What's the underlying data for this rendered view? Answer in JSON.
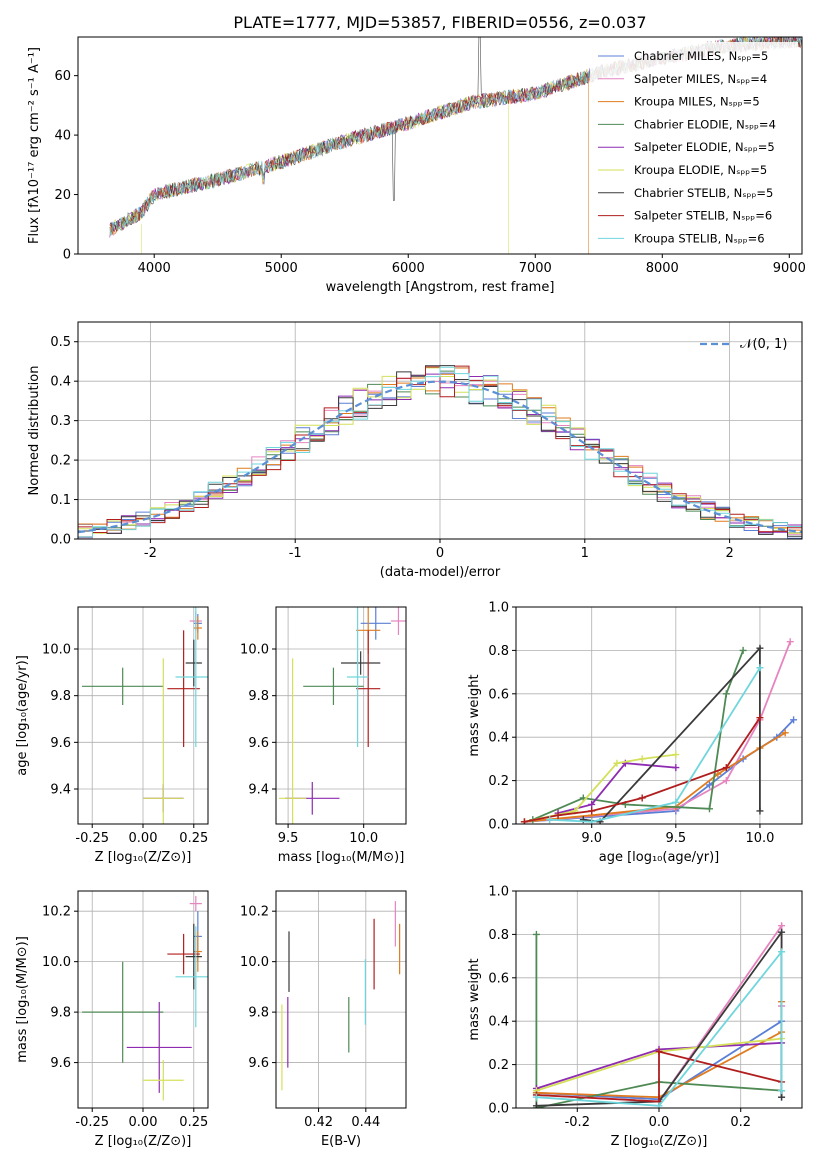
{
  "chart_data": [
    {
      "type": "line",
      "title": "PLATE=1777, MJD=53857, FIBERID=0556, z=0.037",
      "xlabel": "wavelength [Angstrom, rest frame]",
      "ylabel": "Flux [fλ10⁻¹⁷ erg cm⁻² s⁻¹ A⁻¹]",
      "xlim": [
        3400,
        9100
      ],
      "ylim": [
        0,
        73
      ],
      "xticks": [
        4000,
        5000,
        6000,
        7000,
        8000,
        9000
      ],
      "yticks": [
        0,
        20,
        40,
        60
      ],
      "legend_position": "top-right",
      "series": [
        {
          "name": "Chabrier MILES, Nₛₚₚ=5",
          "color": "#5b7fd6"
        },
        {
          "name": "Salpeter MILES, Nₛₚₚ=4",
          "color": "#e684c0"
        },
        {
          "name": "Kroupa MILES, Nₛₚₚ=5",
          "color": "#e07b1f"
        },
        {
          "name": "Chabrier ELODIE, Nₛₚₚ=4",
          "color": "#4f8a55"
        },
        {
          "name": "Salpeter ELODIE, Nₛₚₚ=5",
          "color": "#8e2bb0"
        },
        {
          "name": "Kroupa ELODIE, Nₛₚₚ=5",
          "color": "#d4e05a"
        },
        {
          "name": "Chabrier STELIB, Nₛₚₚ=5",
          "color": "#3a3a3a"
        },
        {
          "name": "Salpeter STELIB, Nₛₚₚ=6",
          "color": "#b01e1e"
        },
        {
          "name": "Kroupa STELIB, Nₛₚₚ=6",
          "color": "#6fd6dc"
        }
      ],
      "continuum": {
        "x": [
          3650,
          3900,
          4000,
          4500,
          5000,
          5500,
          6000,
          6500,
          7000,
          7500,
          8000,
          8500,
          9100
        ],
        "y": [
          8,
          14,
          20,
          25,
          31,
          38,
          44,
          51,
          54,
          61,
          66,
          70,
          72
        ]
      }
    },
    {
      "type": "step",
      "xlabel": "(data-model)/error",
      "ylabel": "Normed distribution",
      "xlim": [
        -2.5,
        2.5
      ],
      "ylim": [
        0,
        0.55
      ],
      "xticks": [
        -2,
        -1,
        0,
        1,
        2
      ],
      "yticks": [
        0.0,
        0.1,
        0.2,
        0.3,
        0.4,
        0.5
      ],
      "legend": "𝒩(0, 1)",
      "gaussian_color": "#5b8fd6"
    },
    {
      "type": "errorbar",
      "xlabel": "Z [log₁₀(Z/Z⊙)]",
      "ylabel": "age  [log₁₀(age/yr)]",
      "xlim": [
        -0.32,
        0.32
      ],
      "ylim": [
        9.25,
        10.18
      ],
      "xticks": [
        -0.25,
        0.0,
        0.25
      ],
      "yticks": [
        9.4,
        9.6,
        9.8,
        10.0
      ],
      "points": [
        {
          "x": 0.26,
          "y": 10.12,
          "xerr": 0.03,
          "yerr": 0.04,
          "color": "#e684c0"
        },
        {
          "x": 0.27,
          "y": 10.11,
          "xerr": 0.02,
          "yerr": 0.04,
          "color": "#5b7fd6"
        },
        {
          "x": 0.27,
          "y": 10.09,
          "xerr": 0.02,
          "yerr": 0.05,
          "color": "#e07b1f"
        },
        {
          "x": -0.1,
          "y": 9.84,
          "xerr": 0.2,
          "yerr": 0.08,
          "color": "#4f8a55"
        },
        {
          "x": 0.1,
          "y": 9.36,
          "xerr": 0.1,
          "yerr": 0.06,
          "color": "#8e2bb0"
        },
        {
          "x": 0.1,
          "y": 9.36,
          "xerr": 0.1,
          "yerr": 0.6,
          "color": "#d4e05a"
        },
        {
          "x": 0.25,
          "y": 9.94,
          "xerr": 0.04,
          "yerr": 0.1,
          "color": "#3a3a3a"
        },
        {
          "x": 0.2,
          "y": 9.83,
          "xerr": 0.08,
          "yerr": 0.25,
          "color": "#b01e1e"
        },
        {
          "x": 0.26,
          "y": 9.88,
          "xerr": 0.1,
          "yerr": 0.3,
          "color": "#6fd6dc"
        }
      ]
    },
    {
      "type": "errorbar",
      "xlabel": "mass [log₁₀(M/M⊙)]",
      "xlim": [
        9.42,
        10.28
      ],
      "ylim": [
        9.25,
        10.18
      ],
      "xticks": [
        9.5,
        10.0
      ],
      "yticks": [
        9.4,
        9.6,
        9.8,
        10.0
      ],
      "points": [
        {
          "x": 10.23,
          "y": 10.12,
          "xerr": 0.05,
          "yerr": 0.06,
          "color": "#e684c0"
        },
        {
          "x": 10.08,
          "y": 10.11,
          "xerr": 0.1,
          "yerr": 0.07,
          "color": "#5b7fd6"
        },
        {
          "x": 10.03,
          "y": 10.08,
          "xerr": 0.08,
          "yerr": 0.1,
          "color": "#e07b1f"
        },
        {
          "x": 9.8,
          "y": 9.84,
          "xerr": 0.2,
          "yerr": 0.08,
          "color": "#4f8a55"
        },
        {
          "x": 9.66,
          "y": 9.36,
          "xerr": 0.18,
          "yerr": 0.07,
          "color": "#8e2bb0"
        },
        {
          "x": 9.53,
          "y": 9.36,
          "xerr": 0.09,
          "yerr": 0.6,
          "color": "#d4e05a"
        },
        {
          "x": 9.98,
          "y": 9.94,
          "xerr": 0.13,
          "yerr": 0.05,
          "color": "#3a3a3a"
        },
        {
          "x": 10.03,
          "y": 9.83,
          "xerr": 0.08,
          "yerr": 0.25,
          "color": "#b01e1e"
        },
        {
          "x": 9.96,
          "y": 9.88,
          "xerr": 0.07,
          "yerr": 0.3,
          "color": "#6fd6dc"
        }
      ]
    },
    {
      "type": "line",
      "xlabel": "age  [log₁₀(age/yr)]",
      "ylabel": "mass weight",
      "xlim": [
        8.55,
        10.25
      ],
      "ylim": [
        0,
        1.0
      ],
      "xticks": [
        9.0,
        9.5,
        10.0
      ],
      "yticks": [
        0.0,
        0.2,
        0.4,
        0.6,
        0.8,
        1.0
      ],
      "series": [
        {
          "color": "#5b7fd6",
          "x": [
            8.6,
            9.5,
            9.7,
            9.9,
            10.1,
            10.2
          ],
          "y": [
            0.01,
            0.06,
            0.18,
            0.3,
            0.4,
            0.48
          ]
        },
        {
          "color": "#e684c0",
          "x": [
            8.6,
            9.5,
            9.8,
            10.0,
            10.18
          ],
          "y": [
            0.01,
            0.07,
            0.2,
            0.48,
            0.84
          ]
        },
        {
          "color": "#e07b1f",
          "x": [
            8.6,
            9.0,
            9.5,
            9.75,
            10.0,
            10.15
          ],
          "y": [
            0.01,
            0.04,
            0.08,
            0.23,
            0.35,
            0.42
          ]
        },
        {
          "color": "#4f8a55",
          "x": [
            8.65,
            8.95,
            9.2,
            9.7,
            9.8,
            9.9
          ],
          "y": [
            0.02,
            0.12,
            0.09,
            0.07,
            0.6,
            0.8
          ]
        },
        {
          "color": "#8e2bb0",
          "x": [
            8.8,
            9.0,
            9.2,
            9.5
          ],
          "y": [
            0.05,
            0.09,
            0.28,
            0.26
          ]
        },
        {
          "color": "#d4e05a",
          "x": [
            8.6,
            8.9,
            9.15,
            9.3,
            9.5
          ],
          "y": [
            0.01,
            0.06,
            0.28,
            0.3,
            0.32
          ]
        },
        {
          "color": "#3a3a3a",
          "x": [
            8.95,
            9.05,
            10.0,
            10.0
          ],
          "y": [
            0.02,
            0.01,
            0.81,
            0.06
          ]
        },
        {
          "color": "#b01e1e",
          "x": [
            8.6,
            8.8,
            9.0,
            9.3,
            9.8,
            10.0
          ],
          "y": [
            0.01,
            0.04,
            0.06,
            0.12,
            0.26,
            0.49
          ]
        },
        {
          "color": "#6fd6dc",
          "x": [
            8.75,
            9.0,
            9.5,
            10.0
          ],
          "y": [
            0.02,
            0.01,
            0.1,
            0.72
          ]
        }
      ]
    },
    {
      "type": "errorbar",
      "xlabel": "Z [log₁₀(Z/Z⊙)]",
      "ylabel": "mass [log₁₀(M/M⊙)]",
      "xlim": [
        -0.32,
        0.32
      ],
      "ylim": [
        9.42,
        10.28
      ],
      "xticks": [
        -0.25,
        0.0,
        0.25
      ],
      "yticks": [
        9.6,
        9.8,
        10.0,
        10.2
      ],
      "points": [
        {
          "x": 0.26,
          "y": 10.23,
          "xerr": 0.03,
          "yerr": 0.03,
          "color": "#e684c0"
        },
        {
          "x": 0.27,
          "y": 10.1,
          "xerr": 0.02,
          "yerr": 0.1,
          "color": "#5b7fd6"
        },
        {
          "x": 0.27,
          "y": 10.04,
          "xerr": 0.02,
          "yerr": 0.08,
          "color": "#e07b1f"
        },
        {
          "x": -0.1,
          "y": 9.8,
          "xerr": 0.2,
          "yerr": 0.2,
          "color": "#4f8a55"
        },
        {
          "x": 0.08,
          "y": 9.66,
          "xerr": 0.16,
          "yerr": 0.18,
          "color": "#8e2bb0"
        },
        {
          "x": 0.1,
          "y": 9.53,
          "xerr": 0.1,
          "yerr": 0.08,
          "color": "#d4e05a"
        },
        {
          "x": 0.25,
          "y": 10.02,
          "xerr": 0.04,
          "yerr": 0.13,
          "color": "#3a3a3a"
        },
        {
          "x": 0.2,
          "y": 10.03,
          "xerr": 0.08,
          "yerr": 0.08,
          "color": "#b01e1e"
        },
        {
          "x": 0.26,
          "y": 9.94,
          "xerr": 0.1,
          "yerr": 0.2,
          "color": "#6fd6dc"
        }
      ]
    },
    {
      "type": "errorbar",
      "xlabel": "E(B-V)",
      "xlim": [
        0.402,
        0.457
      ],
      "ylim": [
        9.42,
        10.28
      ],
      "xticks": [
        0.42,
        0.44
      ],
      "yticks": [
        9.6,
        9.8,
        10.0,
        10.2
      ],
      "points": [
        {
          "x": 0.4525,
          "y": 10.15,
          "yerr": 0.09,
          "color": "#e684c0"
        },
        {
          "x": 0.4543,
          "y": 10.05,
          "yerr": 0.1,
          "color": "#e07b1f"
        },
        {
          "x": 0.4435,
          "y": 10.03,
          "yerr": 0.14,
          "color": "#b01e1e"
        },
        {
          "x": 0.4398,
          "y": 9.88,
          "yerr": 0.13,
          "color": "#6fd6dc"
        },
        {
          "x": 0.4328,
          "y": 9.75,
          "yerr": 0.11,
          "color": "#4f8a55"
        },
        {
          "x": 0.4075,
          "y": 10.0,
          "yerr": 0.12,
          "color": "#3a3a3a"
        },
        {
          "x": 0.407,
          "y": 9.72,
          "yerr": 0.14,
          "color": "#8e2bb0"
        },
        {
          "x": 0.4045,
          "y": 9.66,
          "yerr": 0.17,
          "color": "#d4e05a"
        }
      ]
    },
    {
      "type": "line",
      "xlabel": "Z [log₁₀(Z/Z⊙)]",
      "ylabel": "mass weight",
      "xlim": [
        -0.35,
        0.35
      ],
      "ylim": [
        0,
        1.0
      ],
      "xticks": [
        -0.2,
        0.0,
        0.2
      ],
      "yticks": [
        0.0,
        0.2,
        0.4,
        0.6,
        0.8,
        1.0
      ],
      "series": [
        {
          "color": "#5b7fd6",
          "x": [
            -0.3,
            0.0,
            0.3,
            0.3
          ],
          "y": [
            0.07,
            0.04,
            0.4,
            0.05
          ]
        },
        {
          "color": "#e684c0",
          "x": [
            -0.3,
            0.0,
            0.3,
            0.3
          ],
          "y": [
            0.06,
            0.03,
            0.84,
            0.47
          ]
        },
        {
          "color": "#e07b1f",
          "x": [
            -0.3,
            0.0,
            0.3,
            0.3
          ],
          "y": [
            0.07,
            0.05,
            0.35,
            0.49
          ]
        },
        {
          "color": "#4f8a55",
          "x": [
            -0.3,
            -0.3,
            0.0,
            0.3
          ],
          "y": [
            0.8,
            0.0,
            0.12,
            0.08
          ]
        },
        {
          "color": "#8e2bb0",
          "x": [
            -0.3,
            0.0,
            0.3
          ],
          "y": [
            0.09,
            0.27,
            0.3
          ]
        },
        {
          "color": "#d4e05a",
          "x": [
            -0.3,
            0.0,
            0.3
          ],
          "y": [
            0.08,
            0.26,
            0.32
          ]
        },
        {
          "color": "#3a3a3a",
          "x": [
            -0.3,
            0.0,
            0.3,
            0.3
          ],
          "y": [
            0.01,
            0.03,
            0.81,
            0.05
          ]
        },
        {
          "color": "#b01e1e",
          "x": [
            -0.3,
            0.0,
            0.0,
            0.3
          ],
          "y": [
            0.06,
            0.03,
            0.26,
            0.12
          ]
        },
        {
          "color": "#6fd6dc",
          "x": [
            -0.3,
            0.0,
            0.3,
            0.3
          ],
          "y": [
            0.05,
            0.01,
            0.72,
            0.08
          ]
        }
      ]
    }
  ]
}
